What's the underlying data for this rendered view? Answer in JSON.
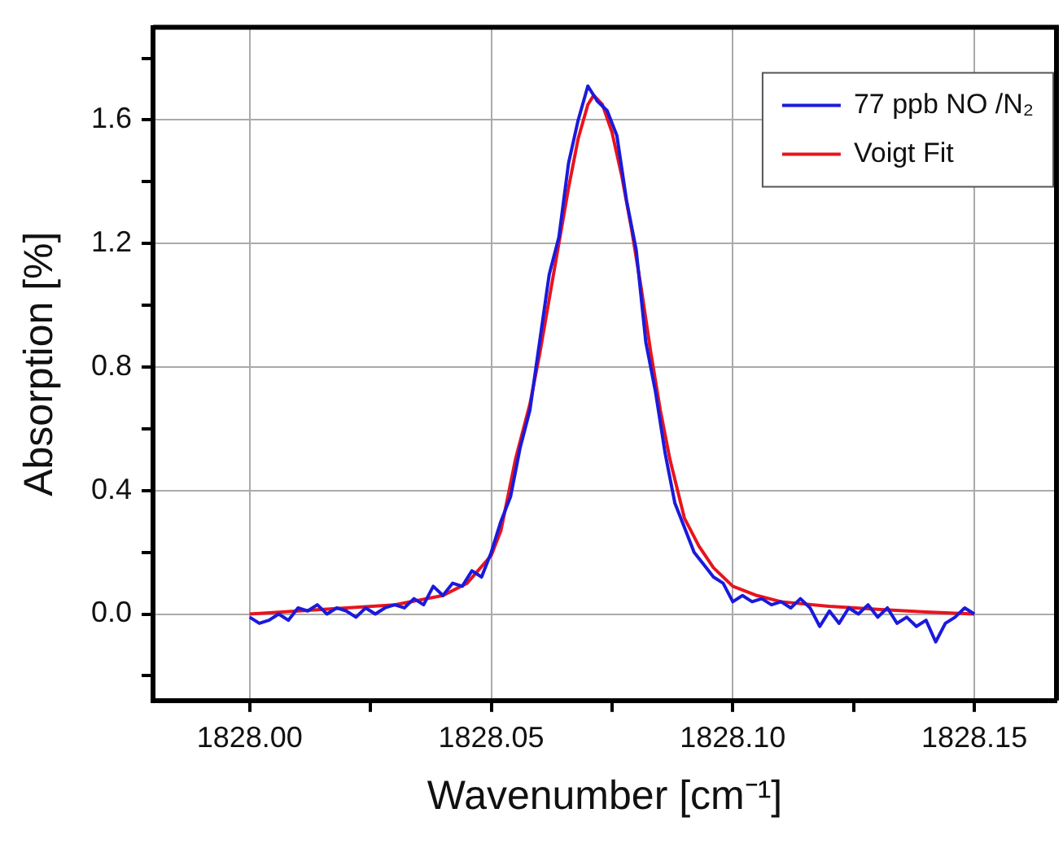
{
  "chart_data": {
    "type": "line",
    "xlabel": "Wavenumber [cm⁻¹]",
    "ylabel": "Absorption [%]",
    "legend": "top right",
    "grid": true,
    "marker": "none",
    "line_style": "solid",
    "xlim": [
      1827.98,
      1828.167
    ],
    "ylim": [
      -0.28,
      1.9
    ],
    "xticks": [
      {
        "value": 1828.0,
        "label": "1828.00"
      },
      {
        "value": 1828.025,
        "label": null
      },
      {
        "value": 1828.05,
        "label": "1828.05"
      },
      {
        "value": 1828.075,
        "label": null
      },
      {
        "value": 1828.1,
        "label": "1828.10"
      },
      {
        "value": 1828.125,
        "label": null
      },
      {
        "value": 1828.15,
        "label": "1828.15"
      }
    ],
    "yticks": [
      {
        "value": -0.2,
        "label": null
      },
      {
        "value": 0,
        "label": "0.0"
      },
      {
        "value": 0.2,
        "label": null
      },
      {
        "value": 0.4,
        "label": "0.4"
      },
      {
        "value": 0.6,
        "label": null
      },
      {
        "value": 0.8,
        "label": "0.8"
      },
      {
        "value": 1.0,
        "label": null
      },
      {
        "value": 1.2,
        "label": "1.2"
      },
      {
        "value": 1.4,
        "label": null
      },
      {
        "value": 1.6,
        "label": "1.6"
      },
      {
        "value": 1.8,
        "label": null
      }
    ],
    "series": [
      {
        "name": "77 ppb NO /N₂",
        "color": "#1a1adc",
        "x": [
          1828.0,
          1828.002,
          1828.004,
          1828.006,
          1828.008,
          1828.01,
          1828.012,
          1828.014,
          1828.016,
          1828.018,
          1828.02,
          1828.022,
          1828.024,
          1828.026,
          1828.028,
          1828.03,
          1828.032,
          1828.034,
          1828.036,
          1828.038,
          1828.04,
          1828.042,
          1828.044,
          1828.046,
          1828.048,
          1828.05,
          1828.052,
          1828.054,
          1828.056,
          1828.058,
          1828.06,
          1828.062,
          1828.064,
          1828.066,
          1828.068,
          1828.07,
          1828.072,
          1828.074,
          1828.076,
          1828.078,
          1828.08,
          1828.082,
          1828.084,
          1828.086,
          1828.088,
          1828.09,
          1828.092,
          1828.094,
          1828.096,
          1828.098,
          1828.1,
          1828.102,
          1828.104,
          1828.106,
          1828.108,
          1828.11,
          1828.112,
          1828.114,
          1828.116,
          1828.118,
          1828.12,
          1828.122,
          1828.124,
          1828.126,
          1828.128,
          1828.13,
          1828.132,
          1828.134,
          1828.136,
          1828.138,
          1828.14,
          1828.142,
          1828.144,
          1828.146,
          1828.148,
          1828.15
        ],
        "values": [
          -0.01,
          -0.03,
          -0.02,
          0.0,
          -0.02,
          0.02,
          0.01,
          0.03,
          0.0,
          0.02,
          0.01,
          -0.01,
          0.02,
          0.0,
          0.02,
          0.03,
          0.02,
          0.05,
          0.03,
          0.09,
          0.06,
          0.1,
          0.09,
          0.14,
          0.12,
          0.2,
          0.3,
          0.38,
          0.54,
          0.66,
          0.88,
          1.1,
          1.22,
          1.46,
          1.6,
          1.71,
          1.66,
          1.63,
          1.55,
          1.34,
          1.18,
          0.88,
          0.72,
          0.52,
          0.36,
          0.28,
          0.2,
          0.16,
          0.12,
          0.1,
          0.04,
          0.06,
          0.04,
          0.05,
          0.03,
          0.04,
          0.02,
          0.05,
          0.02,
          -0.04,
          0.01,
          -0.03,
          0.02,
          0.0,
          0.03,
          -0.01,
          0.02,
          -0.03,
          -0.01,
          -0.04,
          -0.02,
          -0.09,
          -0.03,
          -0.01,
          0.02,
          0.0
        ]
      },
      {
        "name": "Voigt Fit",
        "color": "#e8141e",
        "x": [
          1828.0,
          1828.01,
          1828.02,
          1828.03,
          1828.04,
          1828.045,
          1828.05,
          1828.052,
          1828.055,
          1828.058,
          1828.06,
          1828.062,
          1828.064,
          1828.066,
          1828.068,
          1828.07,
          1828.0712,
          1828.073,
          1828.075,
          1828.077,
          1828.079,
          1828.081,
          1828.083,
          1828.085,
          1828.087,
          1828.09,
          1828.093,
          1828.096,
          1828.1,
          1828.105,
          1828.11,
          1828.12,
          1828.13,
          1828.14,
          1828.15
        ],
        "values": [
          0.0,
          0.01,
          0.02,
          0.03,
          0.06,
          0.1,
          0.19,
          0.27,
          0.5,
          0.68,
          0.84,
          1.02,
          1.2,
          1.38,
          1.54,
          1.65,
          1.68,
          1.65,
          1.56,
          1.42,
          1.25,
          1.06,
          0.85,
          0.66,
          0.5,
          0.31,
          0.22,
          0.15,
          0.09,
          0.06,
          0.04,
          0.025,
          0.015,
          0.007,
          0.0
        ]
      }
    ]
  }
}
